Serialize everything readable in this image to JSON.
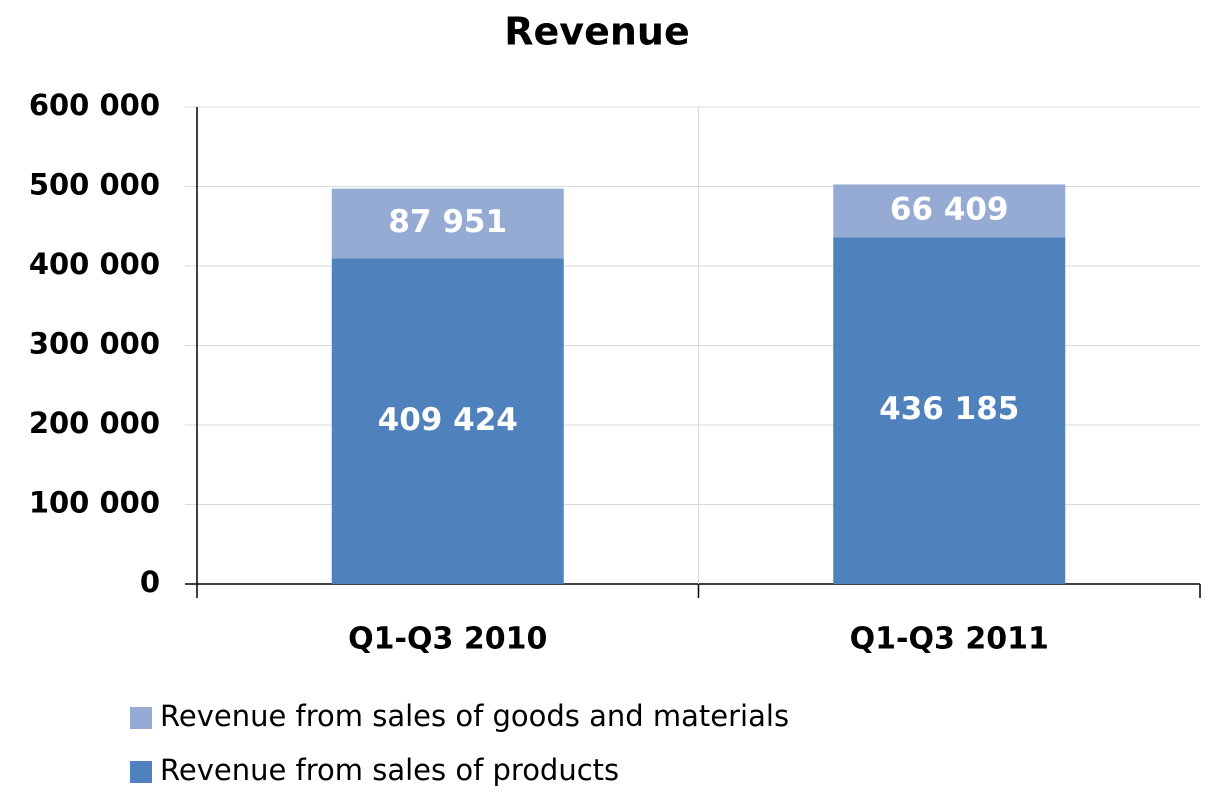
{
  "chart_data": {
    "type": "stacked_bar",
    "title": "Revenue",
    "categories": [
      "Q1-Q3 2010",
      "Q1-Q3 2011"
    ],
    "series": [
      {
        "name": "Revenue from sales of products",
        "color": "#4f81bd",
        "values": [
          409424,
          436185
        ],
        "value_labels": [
          "409 424",
          "436 185"
        ]
      },
      {
        "name": "Revenue from sales of goods and materials",
        "color": "#95abd3",
        "values": [
          87951,
          66409
        ],
        "value_labels": [
          "87 951",
          "66 409"
        ]
      }
    ],
    "ylim": [
      0,
      600000
    ],
    "yticks": [
      0,
      {
        "value": 100000,
        "label": "100 000"
      },
      {
        "value": 200000,
        "label": "200 000"
      },
      {
        "value": 300000,
        "label": "300 000"
      },
      {
        "value": 400000,
        "label": "400 000"
      },
      {
        "value": 500000,
        "label": "500 000"
      },
      {
        "value": 600000,
        "label": "600 000"
      }
    ],
    "grid": true
  }
}
